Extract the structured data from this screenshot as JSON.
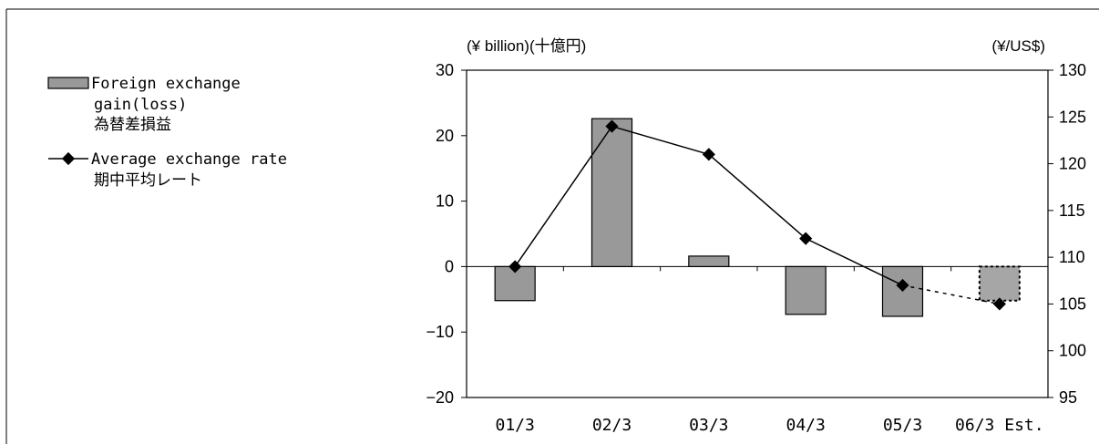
{
  "chart_data": {
    "type": "bar",
    "categories": [
      "01/3",
      "02/3",
      "03/3",
      "04/3",
      "05/3",
      "06/3 Est."
    ],
    "series": [
      {
        "name": "Foreign exchange gain(loss) 為替差損益",
        "type": "bar",
        "axis": "left",
        "values": [
          -5.2,
          22.6,
          1.6,
          -7.3,
          -7.6,
          -5.2
        ],
        "estimated": [
          false,
          false,
          false,
          false,
          false,
          true
        ]
      },
      {
        "name": "Average exchange rate 期中平均レート",
        "type": "line",
        "axis": "right",
        "values": [
          109,
          124,
          121,
          112,
          107,
          105
        ],
        "estimated": [
          false,
          false,
          false,
          false,
          false,
          true
        ]
      }
    ],
    "left_axis": {
      "label": "(¥ billion)(十億円)",
      "range": [
        -20,
        30
      ],
      "ticks": [
        "30",
        "20",
        "10",
        "0",
        "−10",
        "−20"
      ]
    },
    "right_axis": {
      "label": "(¥/US$)",
      "range": [
        95,
        130
      ],
      "ticks": [
        "130",
        "125",
        "120",
        "115",
        "110",
        "105",
        "100",
        "95"
      ]
    },
    "legend": {
      "position": "left",
      "bar_label_lines": [
        "Foreign exchange",
        "gain(loss)",
        "為替差損益"
      ],
      "line_label_lines": [
        "Average exchange rate",
        "期中平均レート"
      ]
    },
    "grid": false,
    "colors": {
      "bar_fill": "#999999",
      "bar_stroke": "#000000",
      "line": "#000000",
      "estimate_fill": "#a6a6a6"
    }
  }
}
